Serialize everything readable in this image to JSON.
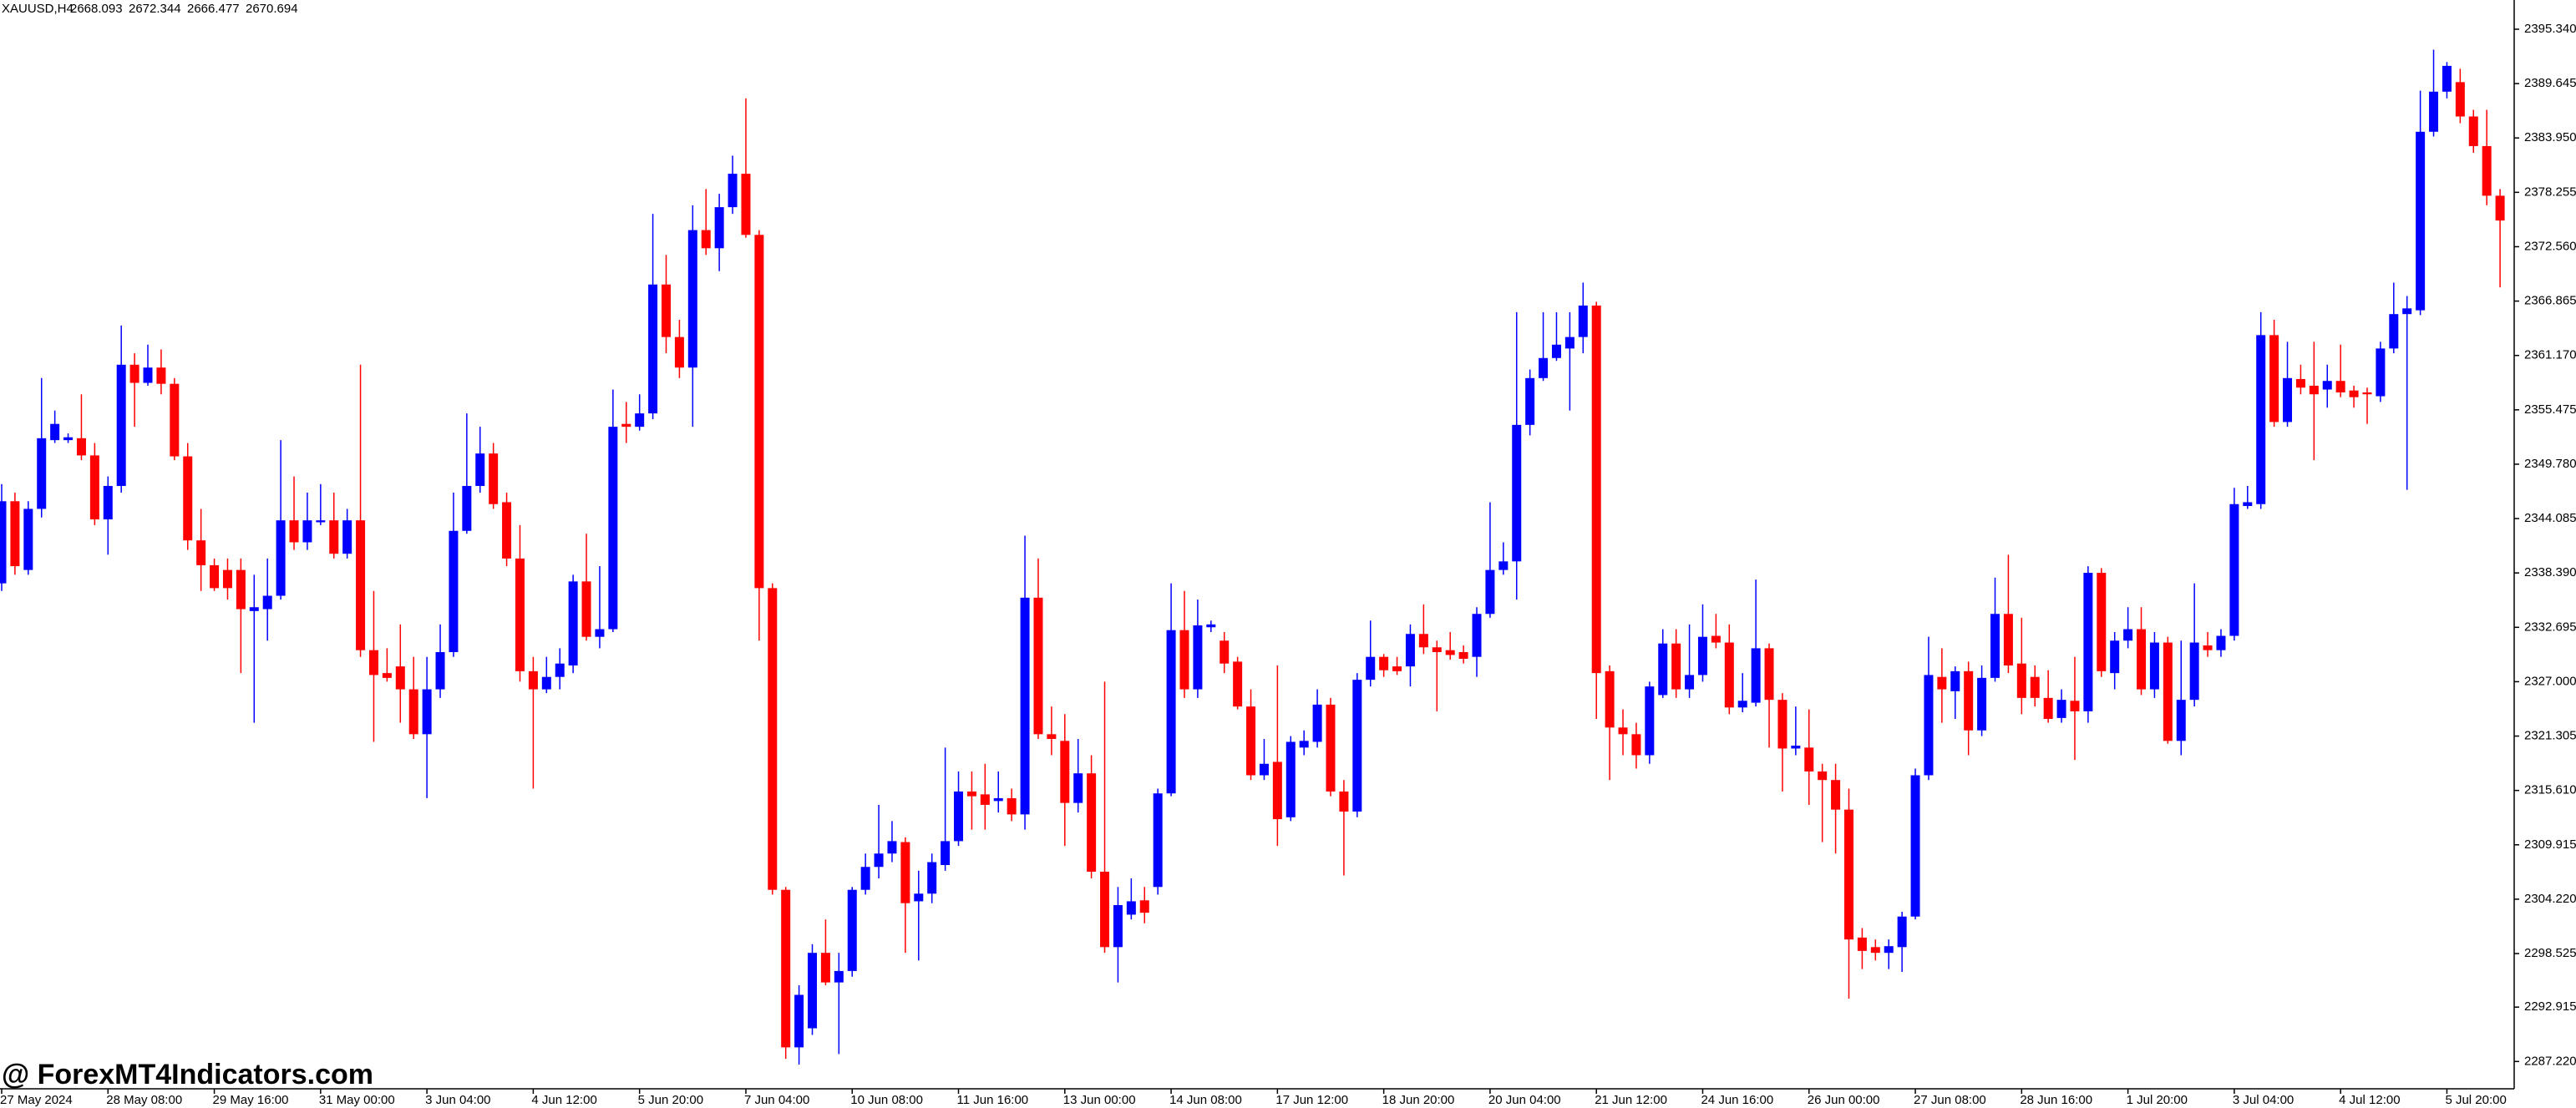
{
  "chart_data": {
    "type": "candlestick",
    "title": "XAUUSD,H4",
    "header_values": [
      2668.093,
      2672.344,
      2666.477,
      2670.694
    ],
    "annotation": "@ ForexMT4Indicators.com",
    "bull_color": "#0000ff",
    "bear_color": "#ff0000",
    "ylim": [
      2284.36,
      2398.4
    ],
    "yticks": [
      {
        "value": 2395.34,
        "label": "2395.340"
      },
      2389.645,
      {
        "value": 2383.95,
        "label": "2383.950"
      },
      2378.255,
      {
        "value": 2372.56,
        "label": "2372.560"
      },
      2366.865,
      {
        "value": 2361.17,
        "label": "2361.170"
      },
      2355.475,
      {
        "value": 2349.78,
        "label": "2349.780"
      },
      2344.085,
      {
        "value": 2338.39,
        "label": "2338.390"
      },
      2332.695,
      {
        "value": 2327,
        "label": "2327.000"
      },
      2321.305,
      {
        "value": 2315.61,
        "label": "2315.610"
      },
      2309.915,
      {
        "value": 2304.22,
        "label": "2304.220"
      },
      2298.525,
      2292.915,
      {
        "value": 2287.22,
        "label": "2287.220"
      }
    ],
    "categories": [
      "27 May 2024",
      null,
      null,
      null,
      null,
      null,
      null,
      null,
      "28 May 08:00",
      null,
      null,
      null,
      null,
      null,
      null,
      null,
      "29 May 16:00",
      null,
      null,
      null,
      null,
      null,
      null,
      null,
      "31 May 00:00",
      null,
      null,
      null,
      null,
      null,
      null,
      null,
      "3 Jun 04:00",
      null,
      null,
      null,
      null,
      null,
      null,
      null,
      "4 Jun 12:00",
      null,
      null,
      null,
      null,
      null,
      null,
      null,
      "5 Jun 20:00",
      null,
      null,
      null,
      null,
      null,
      null,
      null,
      "7 Jun 04:00",
      null,
      null,
      null,
      null,
      null,
      null,
      null,
      "10 Jun 08:00",
      null,
      null,
      null,
      null,
      null,
      null,
      null,
      "11 Jun 16:00",
      null,
      null,
      null,
      null,
      null,
      null,
      null,
      "13 Jun 00:00",
      null,
      null,
      null,
      null,
      null,
      null,
      null,
      "14 Jun 08:00",
      null,
      null,
      null,
      null,
      null,
      null,
      null,
      "17 Jun 12:00",
      null,
      null,
      null,
      null,
      null,
      null,
      null,
      "18 Jun 20:00",
      null,
      null,
      null,
      null,
      null,
      null,
      null,
      "20 Jun 04:00",
      null,
      null,
      null,
      null,
      null,
      null,
      null,
      "21 Jun 12:00",
      null,
      null,
      null,
      null,
      null,
      null,
      null,
      "24 Jun 16:00",
      null,
      null,
      null,
      null,
      null,
      null,
      null,
      "26 Jun 00:00",
      null,
      null,
      null,
      null,
      null,
      null,
      null,
      "27 Jun 08:00",
      null,
      null,
      null,
      null,
      null,
      null,
      null,
      "28 Jun 16:00",
      null,
      null,
      null,
      null,
      null,
      null,
      null,
      "1 Jul 20:00",
      null,
      null,
      null,
      null,
      null,
      null,
      null,
      "3 Jul 04:00",
      null,
      null,
      null,
      null,
      null,
      null,
      null,
      "4 Jul 12:00",
      null,
      null,
      null,
      null,
      null,
      null,
      null,
      "5 Jul 20:00",
      null,
      null,
      null,
      null
    ],
    "candles": [
      [
        2337.3,
        2347.7,
        2336.5,
        2345.9
      ],
      [
        2345.9,
        2346.8,
        2338.2,
        2339.1
      ],
      [
        2338.7,
        2345.9,
        2338.2,
        2345.1
      ],
      [
        2345.1,
        2358.8,
        2344.2,
        2352.5
      ],
      [
        2352.3,
        2355.4,
        2352.0,
        2354.0
      ],
      [
        2352.3,
        2353.0,
        2352.0,
        2352.6
      ],
      [
        2352.5,
        2357.1,
        2350.2,
        2350.7
      ],
      [
        2350.7,
        2352.0,
        2343.4,
        2344.0
      ],
      [
        2344.0,
        2348.5,
        2340.3,
        2347.5
      ],
      [
        2347.5,
        2364.3,
        2346.8,
        2360.2
      ],
      [
        2360.2,
        2361.4,
        2353.7,
        2358.3
      ],
      [
        2358.3,
        2362.3,
        2358.0,
        2359.9
      ],
      [
        2359.9,
        2361.8,
        2357.1,
        2358.2
      ],
      [
        2358.2,
        2358.8,
        2350.2,
        2350.6
      ],
      [
        2350.6,
        2352.0,
        2340.8,
        2341.8
      ],
      [
        2341.8,
        2345.1,
        2336.5,
        2339.2
      ],
      [
        2339.2,
        2339.9,
        2336.5,
        2336.8
      ],
      [
        2338.7,
        2339.9,
        2335.6,
        2336.8
      ],
      [
        2338.7,
        2339.9,
        2327.9,
        2334.6
      ],
      [
        2334.4,
        2338.2,
        2322.7,
        2334.8
      ],
      [
        2334.6,
        2339.9,
        2331.3,
        2336.0
      ],
      [
        2336.0,
        2352.3,
        2335.6,
        2343.9
      ],
      [
        2343.9,
        2348.5,
        2340.8,
        2341.6
      ],
      [
        2341.6,
        2346.8,
        2340.8,
        2343.9
      ],
      [
        2343.7,
        2347.7,
        2343.4,
        2343.9
      ],
      [
        2343.9,
        2346.8,
        2339.9,
        2340.4
      ],
      [
        2340.4,
        2345.1,
        2339.9,
        2343.9
      ],
      [
        2343.9,
        2360.2,
        2329.6,
        2330.3
      ],
      [
        2330.3,
        2336.5,
        2320.7,
        2327.7
      ],
      [
        2327.9,
        2330.5,
        2327.0,
        2327.4
      ],
      [
        2328.6,
        2333.0,
        2322.7,
        2326.2
      ],
      [
        2326.2,
        2329.6,
        2321.0,
        2321.5
      ],
      [
        2321.5,
        2329.6,
        2314.8,
        2326.2
      ],
      [
        2326.2,
        2333.0,
        2325.3,
        2330.1
      ],
      [
        2330.1,
        2346.8,
        2329.6,
        2342.8
      ],
      [
        2342.8,
        2355.1,
        2342.5,
        2347.5
      ],
      [
        2347.5,
        2353.7,
        2346.8,
        2350.9
      ],
      [
        2350.9,
        2352.0,
        2345.1,
        2345.6
      ],
      [
        2345.8,
        2346.8,
        2339.1,
        2339.9
      ],
      [
        2339.9,
        2343.4,
        2327.0,
        2328.1
      ],
      [
        2328.1,
        2329.6,
        2315.8,
        2326.2
      ],
      [
        2326.2,
        2329.6,
        2325.8,
        2327.5
      ],
      [
        2327.5,
        2330.5,
        2326.2,
        2328.9
      ],
      [
        2328.7,
        2338.2,
        2327.9,
        2337.5
      ],
      [
        2337.5,
        2342.5,
        2331.3,
        2331.7
      ],
      [
        2331.7,
        2339.1,
        2330.5,
        2332.5
      ],
      [
        2332.5,
        2357.6,
        2332.2,
        2353.7
      ],
      [
        2354.0,
        2356.3,
        2352.0,
        2353.7
      ],
      [
        2353.7,
        2357.1,
        2353.3,
        2355.1
      ],
      [
        2355.1,
        2376.0,
        2354.5,
        2368.6
      ],
      [
        2368.6,
        2371.7,
        2361.4,
        2363.1
      ],
      [
        2363.1,
        2364.9,
        2358.8,
        2359.9
      ],
      [
        2359.9,
        2376.9,
        2353.7,
        2374.3
      ],
      [
        2374.3,
        2378.6,
        2371.7,
        2372.4
      ],
      [
        2372.4,
        2378.1,
        2370.0,
        2376.7
      ],
      [
        2376.7,
        2382.1,
        2376.0,
        2380.2
      ],
      [
        2380.2,
        2388.1,
        2373.5,
        2373.8
      ],
      [
        2373.8,
        2374.3,
        2331.3,
        2336.8
      ],
      [
        2336.8,
        2337.3,
        2304.7,
        2305.2
      ],
      [
        2305.2,
        2305.5,
        2287.5,
        2288.7
      ],
      [
        2288.7,
        2295.2,
        2286.9,
        2294.2
      ],
      [
        2290.7,
        2299.5,
        2290.0,
        2298.6
      ],
      [
        2298.6,
        2302.1,
        2295.2,
        2295.5
      ],
      [
        2295.5,
        2298.6,
        2288.0,
        2296.7
      ],
      [
        2296.7,
        2305.5,
        2296.1,
        2305.2
      ],
      [
        2305.2,
        2309.0,
        2304.7,
        2307.6
      ],
      [
        2307.6,
        2314.1,
        2306.4,
        2309.0
      ],
      [
        2309.0,
        2312.4,
        2308.1,
        2310.3
      ],
      [
        2310.2,
        2310.7,
        2298.6,
        2303.8
      ],
      [
        2304.0,
        2307.2,
        2297.8,
        2304.8
      ],
      [
        2304.8,
        2309.0,
        2303.8,
        2308.1
      ],
      [
        2307.8,
        2320.1,
        2307.2,
        2310.3
      ],
      [
        2310.3,
        2317.6,
        2309.8,
        2315.5
      ],
      [
        2315.5,
        2317.6,
        2311.5,
        2315.0
      ],
      [
        2315.2,
        2318.4,
        2311.5,
        2314.1
      ],
      [
        2314.5,
        2317.6,
        2313.3,
        2314.8
      ],
      [
        2314.8,
        2315.8,
        2312.4,
        2313.1
      ],
      [
        2313.1,
        2342.3,
        2311.5,
        2335.8
      ],
      [
        2335.8,
        2339.9,
        2321.0,
        2321.5
      ],
      [
        2321.5,
        2324.4,
        2319.3,
        2321.0
      ],
      [
        2320.8,
        2323.6,
        2309.8,
        2314.3
      ],
      [
        2314.3,
        2321.0,
        2313.3,
        2317.4
      ],
      [
        2317.4,
        2319.3,
        2306.4,
        2307.1
      ],
      [
        2307.1,
        2327.0,
        2298.6,
        2299.2
      ],
      [
        2299.2,
        2305.5,
        2295.5,
        2303.6
      ],
      [
        2302.6,
        2306.4,
        2302.1,
        2304.0
      ],
      [
        2304.1,
        2305.5,
        2301.7,
        2302.8
      ],
      [
        2305.5,
        2315.8,
        2304.7,
        2315.3
      ],
      [
        2315.3,
        2337.3,
        2315.0,
        2332.4
      ],
      [
        2332.4,
        2336.5,
        2325.3,
        2326.2
      ],
      [
        2326.2,
        2335.6,
        2325.3,
        2332.9
      ],
      [
        2332.7,
        2333.4,
        2332.2,
        2333.0
      ],
      [
        2331.3,
        2332.2,
        2327.9,
        2328.9
      ],
      [
        2329.1,
        2329.6,
        2324.1,
        2324.4
      ],
      [
        2324.4,
        2326.2,
        2316.7,
        2317.2
      ],
      [
        2317.2,
        2321.0,
        2316.7,
        2318.4
      ],
      [
        2318.6,
        2328.7,
        2309.8,
        2312.6
      ],
      [
        2312.8,
        2321.3,
        2312.4,
        2320.7
      ],
      [
        2320.1,
        2321.9,
        2319.3,
        2320.8
      ],
      [
        2320.7,
        2326.2,
        2320.1,
        2324.6
      ],
      [
        2324.6,
        2325.3,
        2315.0,
        2315.5
      ],
      [
        2315.5,
        2316.7,
        2306.7,
        2313.4
      ],
      [
        2313.4,
        2327.9,
        2312.8,
        2327.2
      ],
      [
        2327.2,
        2333.4,
        2326.5,
        2329.6
      ],
      [
        2329.6,
        2329.9,
        2327.5,
        2328.2
      ],
      [
        2328.6,
        2329.6,
        2327.7,
        2328.1
      ],
      [
        2328.6,
        2333.0,
        2326.5,
        2332.0
      ],
      [
        2332.0,
        2335.1,
        2329.9,
        2330.6
      ],
      [
        2330.6,
        2331.3,
        2323.9,
        2330.1
      ],
      [
        2330.3,
        2332.2,
        2329.3,
        2329.8
      ],
      [
        2330.1,
        2330.8,
        2328.9,
        2329.4
      ],
      [
        2329.6,
        2334.8,
        2327.5,
        2334.1
      ],
      [
        2334.1,
        2345.8,
        2333.7,
        2338.7
      ],
      [
        2338.7,
        2341.6,
        2338.2,
        2339.6
      ],
      [
        2339.6,
        2365.7,
        2335.6,
        2353.9
      ],
      [
        2353.9,
        2359.7,
        2352.8,
        2358.8
      ],
      [
        2358.8,
        2365.7,
        2358.5,
        2360.9
      ],
      [
        2360.9,
        2365.7,
        2360.6,
        2362.3
      ],
      [
        2361.9,
        2365.7,
        2355.4,
        2363.1
      ],
      [
        2363.1,
        2368.8,
        2361.4,
        2366.4
      ],
      [
        2366.4,
        2366.8,
        2323.1,
        2327.9
      ],
      [
        2328.1,
        2328.7,
        2316.7,
        2322.2
      ],
      [
        2322.2,
        2324.1,
        2319.3,
        2321.5
      ],
      [
        2321.5,
        2322.7,
        2317.9,
        2319.3
      ],
      [
        2319.3,
        2327.0,
        2318.4,
        2326.5
      ],
      [
        2325.6,
        2332.5,
        2325.3,
        2331.0
      ],
      [
        2331.0,
        2332.5,
        2325.3,
        2326.2
      ],
      [
        2326.2,
        2333.0,
        2325.3,
        2327.7
      ],
      [
        2327.7,
        2335.1,
        2327.0,
        2331.7
      ],
      [
        2331.8,
        2334.1,
        2330.5,
        2331.1
      ],
      [
        2331.1,
        2333.0,
        2323.6,
        2324.3
      ],
      [
        2324.3,
        2327.9,
        2323.8,
        2325.0
      ],
      [
        2324.8,
        2337.7,
        2324.4,
        2330.5
      ],
      [
        2330.5,
        2331.0,
        2320.1,
        2325.1
      ],
      [
        2325.1,
        2325.8,
        2315.5,
        2320.0
      ],
      [
        2320.0,
        2324.4,
        2319.3,
        2320.3
      ],
      [
        2320.1,
        2324.1,
        2314.1,
        2317.6
      ],
      [
        2317.6,
        2318.4,
        2310.2,
        2316.7
      ],
      [
        2316.7,
        2318.4,
        2309.0,
        2313.6
      ],
      [
        2313.6,
        2315.8,
        2293.8,
        2300.0
      ],
      [
        2300.2,
        2301.2,
        2296.9,
        2298.8
      ],
      [
        2299.2,
        2300.0,
        2297.8,
        2298.6
      ],
      [
        2298.6,
        2300.0,
        2296.9,
        2299.3
      ],
      [
        2299.2,
        2302.9,
        2296.6,
        2302.4
      ],
      [
        2302.4,
        2317.9,
        2302.1,
        2317.2
      ],
      [
        2317.2,
        2331.7,
        2316.7,
        2327.7
      ],
      [
        2327.5,
        2330.5,
        2322.7,
        2326.2
      ],
      [
        2326.0,
        2328.6,
        2323.1,
        2328.1
      ],
      [
        2328.1,
        2329.1,
        2319.3,
        2321.9
      ],
      [
        2321.9,
        2328.7,
        2321.3,
        2327.4
      ],
      [
        2327.4,
        2337.9,
        2327.0,
        2334.1
      ],
      [
        2334.1,
        2340.3,
        2327.9,
        2328.7
      ],
      [
        2328.9,
        2333.7,
        2323.6,
        2325.3
      ],
      [
        2327.5,
        2328.7,
        2324.4,
        2325.3
      ],
      [
        2325.3,
        2328.2,
        2322.7,
        2323.1
      ],
      [
        2323.2,
        2326.2,
        2322.7,
        2325.1
      ],
      [
        2325.0,
        2329.6,
        2318.8,
        2323.9
      ],
      [
        2323.9,
        2339.1,
        2322.7,
        2338.4
      ],
      [
        2338.4,
        2338.9,
        2327.5,
        2328.1
      ],
      [
        2327.9,
        2332.2,
        2326.2,
        2331.3
      ],
      [
        2331.3,
        2334.8,
        2330.5,
        2332.5
      ],
      [
        2332.5,
        2334.8,
        2325.6,
        2326.2
      ],
      [
        2326.2,
        2332.2,
        2325.3,
        2331.1
      ],
      [
        2331.1,
        2331.7,
        2320.5,
        2320.8
      ],
      [
        2320.8,
        2331.3,
        2319.3,
        2325.1
      ],
      [
        2325.1,
        2337.3,
        2324.4,
        2331.1
      ],
      [
        2330.8,
        2332.2,
        2329.6,
        2330.3
      ],
      [
        2330.3,
        2332.5,
        2329.6,
        2331.8
      ],
      [
        2331.8,
        2347.3,
        2331.3,
        2345.6
      ],
      [
        2345.4,
        2347.5,
        2345.1,
        2345.8
      ],
      [
        2345.6,
        2365.7,
        2345.1,
        2363.3
      ],
      [
        2363.3,
        2364.9,
        2353.7,
        2354.2
      ],
      [
        2354.2,
        2362.6,
        2353.7,
        2358.8
      ],
      [
        2358.7,
        2360.2,
        2357.1,
        2357.8
      ],
      [
        2358.0,
        2362.6,
        2350.2,
        2357.1
      ],
      [
        2357.6,
        2360.2,
        2355.7,
        2358.5
      ],
      [
        2358.5,
        2362.3,
        2356.8,
        2357.3
      ],
      [
        2357.5,
        2358.0,
        2355.7,
        2356.8
      ],
      [
        2357.3,
        2357.8,
        2354.0,
        2357.1
      ],
      [
        2356.9,
        2362.6,
        2356.3,
        2361.9
      ],
      [
        2361.9,
        2368.8,
        2361.4,
        2365.5
      ],
      [
        2365.5,
        2367.4,
        2347.1,
        2366.1
      ],
      [
        2365.9,
        2388.9,
        2365.4,
        2384.6
      ],
      [
        2384.6,
        2393.2,
        2384.1,
        2388.8
      ],
      [
        2388.8,
        2391.9,
        2388.1,
        2391.5
      ],
      [
        2389.8,
        2391.2,
        2385.5,
        2386.2
      ],
      [
        2386.2,
        2386.9,
        2382.4,
        2383.1
      ],
      [
        2383.1,
        2386.9,
        2376.9,
        2377.9
      ],
      [
        2377.9,
        2378.6,
        2368.3,
        2375.3
      ]
    ]
  }
}
